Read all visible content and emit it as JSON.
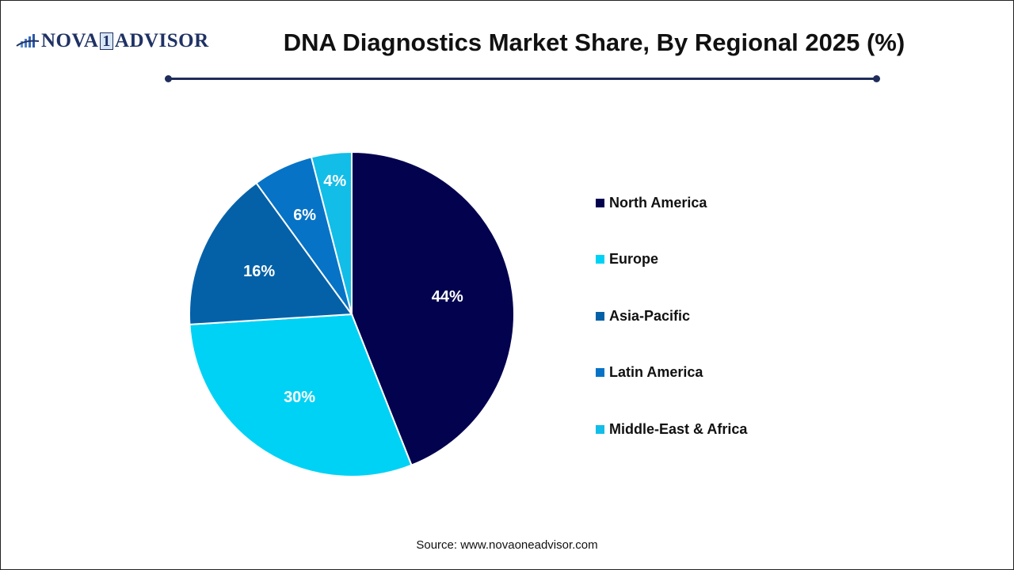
{
  "header": {
    "logo_text_left": "NOVA",
    "logo_text_digit": "1",
    "logo_text_right": "ADVISOR",
    "title": "DNA Diagnostics Market Share, By Regional 2025 (%)"
  },
  "footer": {
    "source": "Source: www.novaoneadvisor.com"
  },
  "colors": {
    "north_america": "#03024f",
    "europe": "#00d2f5",
    "asia_pacific": "#0461a8",
    "latin_america": "#0673c6",
    "middle_east_africa": "#12bde8"
  },
  "chart_data": {
    "type": "pie",
    "title": "DNA Diagnostics Market Share, By Regional 2025 (%)",
    "categories": [
      "North America",
      "Europe",
      "Asia-Pacific",
      "Latin America",
      "Middle-East & Africa"
    ],
    "values": [
      44,
      30,
      16,
      6,
      4
    ],
    "labels": [
      "44%",
      "30%",
      "16%",
      "6%",
      "4%"
    ],
    "colors": [
      "#03024f",
      "#00d2f5",
      "#0461a8",
      "#0673c6",
      "#12bde8"
    ],
    "start_angle": "12 o'clock",
    "direction": "clockwise",
    "legend_position": "right"
  }
}
